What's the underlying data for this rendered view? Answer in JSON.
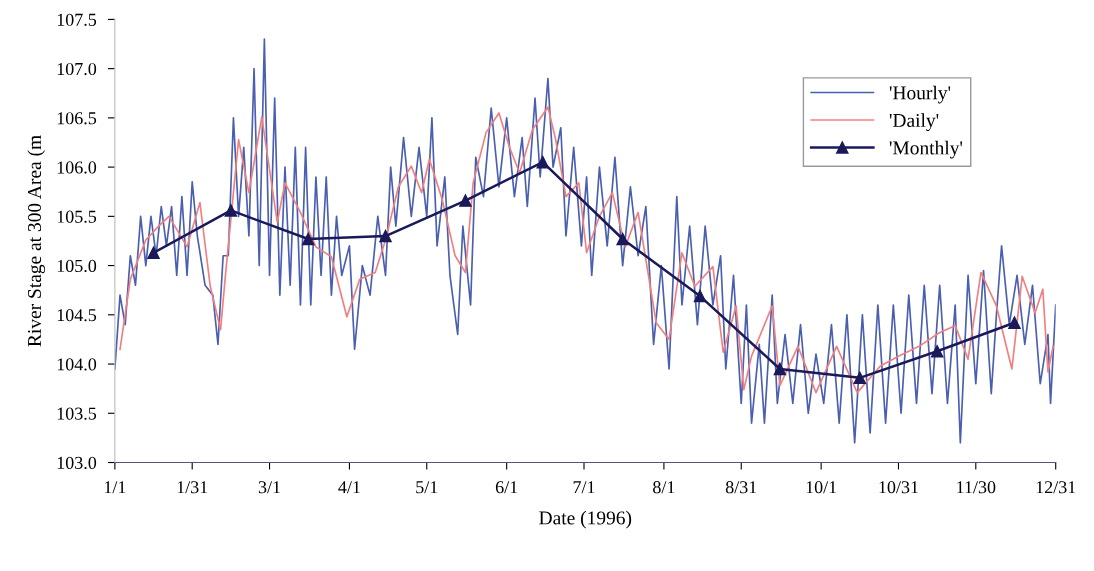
{
  "chart_data": {
    "type": "line",
    "xlabel": "Date (1996)",
    "ylabel": "River Stage at 300 Area (m",
    "legend": "top right",
    "grid": false,
    "xlim": [
      "1996-01-01",
      "1996-12-31"
    ],
    "xticks": [
      {
        "value": "1996-01-01",
        "label": "1/1"
      },
      {
        "value": "1996-01-31",
        "label": "1/31"
      },
      {
        "value": "1996-03-01",
        "label": "3/1"
      },
      {
        "value": "1996-04-01",
        "label": "4/1"
      },
      {
        "value": "1996-05-01",
        "label": "5/1"
      },
      {
        "value": "1996-06-01",
        "label": "6/1"
      },
      {
        "value": "1996-07-01",
        "label": "7/1"
      },
      {
        "value": "1996-08-01",
        "label": "8/1"
      },
      {
        "value": "1996-08-31",
        "label": "8/31"
      },
      {
        "value": "1996-10-01",
        "label": "10/1"
      },
      {
        "value": "1996-10-31",
        "label": "10/31"
      },
      {
        "value": "1996-11-30",
        "label": "11/30"
      },
      {
        "value": "1996-12-31",
        "label": "12/31"
      }
    ],
    "ylim": [
      103,
      107.5
    ],
    "yticks": [
      {
        "value": 103,
        "label": "103.0"
      },
      {
        "value": 103.5,
        "label": "103.5"
      },
      {
        "value": 104,
        "label": "104.0"
      },
      {
        "value": 104.5,
        "label": "104.5"
      },
      {
        "value": 105,
        "label": "105.0"
      },
      {
        "value": 105.5,
        "label": "105.5"
      },
      {
        "value": 106,
        "label": "106.0"
      },
      {
        "value": 106.5,
        "label": "106.5"
      },
      {
        "value": 107,
        "label": "107.0"
      },
      {
        "value": 107.5,
        "label": "107.5"
      }
    ],
    "series": [
      {
        "name": "'Hourly'",
        "color": "#4a5fb0",
        "marker": "none",
        "x": [
          "1996-01-01",
          "1996-01-03",
          "1996-01-05",
          "1996-01-07",
          "1996-01-09",
          "1996-01-11",
          "1996-01-13",
          "1996-01-15",
          "1996-01-17",
          "1996-01-19",
          "1996-01-21",
          "1996-01-23",
          "1996-01-25",
          "1996-01-27",
          "1996-01-29",
          "1996-01-31",
          "1996-02-02",
          "1996-02-05",
          "1996-02-08",
          "1996-02-10",
          "1996-02-12",
          "1996-02-14",
          "1996-02-16",
          "1996-02-18",
          "1996-02-20",
          "1996-02-22",
          "1996-02-24",
          "1996-02-26",
          "1996-02-28",
          "1996-03-01",
          "1996-03-03",
          "1996-03-05",
          "1996-03-07",
          "1996-03-09",
          "1996-03-11",
          "1996-03-13",
          "1996-03-15",
          "1996-03-17",
          "1996-03-19",
          "1996-03-21",
          "1996-03-23",
          "1996-03-25",
          "1996-03-27",
          "1996-03-29",
          "1996-04-01",
          "1996-04-03",
          "1996-04-06",
          "1996-04-09",
          "1996-04-12",
          "1996-04-15",
          "1996-04-17",
          "1996-04-19",
          "1996-04-22",
          "1996-04-25",
          "1996-04-28",
          "1996-05-01",
          "1996-05-03",
          "1996-05-05",
          "1996-05-08",
          "1996-05-10",
          "1996-05-13",
          "1996-05-15",
          "1996-05-18",
          "1996-05-20",
          "1996-05-23",
          "1996-05-26",
          "1996-05-29",
          "1996-06-01",
          "1996-06-04",
          "1996-06-07",
          "1996-06-09",
          "1996-06-12",
          "1996-06-14",
          "1996-06-17",
          "1996-06-19",
          "1996-06-22",
          "1996-06-24",
          "1996-06-27",
          "1996-06-30",
          "1996-07-02",
          "1996-07-04",
          "1996-07-07",
          "1996-07-10",
          "1996-07-13",
          "1996-07-16",
          "1996-07-19",
          "1996-07-22",
          "1996-07-25",
          "1996-07-28",
          "1996-07-31",
          "1996-08-03",
          "1996-08-06",
          "1996-08-08",
          "1996-08-11",
          "1996-08-14",
          "1996-08-17",
          "1996-08-20",
          "1996-08-23",
          "1996-08-25",
          "1996-08-28",
          "1996-08-31",
          "1996-09-02",
          "1996-09-04",
          "1996-09-07",
          "1996-09-09",
          "1996-09-12",
          "1996-09-14",
          "1996-09-17",
          "1996-09-20",
          "1996-09-23",
          "1996-09-26",
          "1996-09-29",
          "1996-10-02",
          "1996-10-05",
          "1996-10-08",
          "1996-10-11",
          "1996-10-14",
          "1996-10-17",
          "1996-10-20",
          "1996-10-23",
          "1996-10-26",
          "1996-10-29",
          "1996-11-01",
          "1996-11-04",
          "1996-11-07",
          "1996-11-10",
          "1996-11-13",
          "1996-11-16",
          "1996-11-19",
          "1996-11-22",
          "1996-11-24",
          "1996-11-27",
          "1996-11-30",
          "1996-12-03",
          "1996-12-06",
          "1996-12-08",
          "1996-12-10",
          "1996-12-13",
          "1996-12-16",
          "1996-12-19",
          "1996-12-22",
          "1996-12-25",
          "1996-12-28",
          "1996-12-29",
          "1996-12-31"
        ],
        "values": [
          103.95,
          104.7,
          104.4,
          105.1,
          104.8,
          105.5,
          105.0,
          105.5,
          105.1,
          105.6,
          105.2,
          105.6,
          104.9,
          105.7,
          104.9,
          105.85,
          105.3,
          104.8,
          104.7,
          104.2,
          105.1,
          105.1,
          106.5,
          105.5,
          106.2,
          105.3,
          107.0,
          105.0,
          107.3,
          104.9,
          106.7,
          104.7,
          106.0,
          104.8,
          106.2,
          104.6,
          106.2,
          104.6,
          105.9,
          104.9,
          105.9,
          104.7,
          105.5,
          104.9,
          105.2,
          104.15,
          105.0,
          104.7,
          105.5,
          104.9,
          106.0,
          105.4,
          106.3,
          105.5,
          106.2,
          105.5,
          106.5,
          105.2,
          105.9,
          104.9,
          104.3,
          105.4,
          104.6,
          106.1,
          105.7,
          106.6,
          105.8,
          106.5,
          105.7,
          106.3,
          105.6,
          106.7,
          105.9,
          106.9,
          106.0,
          106.4,
          105.3,
          106.2,
          105.2,
          105.9,
          104.9,
          106.0,
          105.2,
          106.1,
          105.0,
          105.8,
          105.1,
          105.6,
          104.2,
          105.0,
          103.95,
          105.7,
          104.6,
          105.4,
          104.4,
          105.4,
          104.6,
          105.1,
          103.95,
          104.9,
          103.6,
          104.6,
          103.4,
          104.2,
          103.4,
          104.7,
          103.6,
          104.3,
          103.6,
          104.4,
          103.5,
          104.1,
          103.6,
          104.4,
          103.4,
          104.5,
          103.2,
          104.5,
          103.3,
          104.6,
          103.4,
          104.6,
          103.5,
          104.7,
          103.6,
          104.8,
          103.7,
          104.8,
          103.6,
          104.6,
          103.2,
          104.9,
          103.8,
          104.95,
          103.7,
          104.5,
          105.2,
          104.4,
          104.9,
          104.2,
          104.8,
          103.8,
          104.3,
          103.6,
          104.6
        ]
      },
      {
        "name": "'Daily'",
        "color": "#f08080",
        "marker": "none",
        "x": [
          "1996-01-03",
          "1996-01-07",
          "1996-01-13",
          "1996-01-18",
          "1996-01-22",
          "1996-01-29",
          "1996-02-03",
          "1996-02-07",
          "1996-02-11",
          "1996-02-13",
          "1996-02-18",
          "1996-02-22",
          "1996-02-27",
          "1996-03-04",
          "1996-03-07",
          "1996-03-13",
          "1996-03-19",
          "1996-03-25",
          "1996-03-31",
          "1996-04-05",
          "1996-04-11",
          "1996-04-15",
          "1996-04-20",
          "1996-04-25",
          "1996-04-29",
          "1996-05-02",
          "1996-05-07",
          "1996-05-12",
          "1996-05-16",
          "1996-05-19",
          "1996-05-24",
          "1996-05-29",
          "1996-06-02",
          "1996-06-06",
          "1996-06-11",
          "1996-06-17",
          "1996-06-20",
          "1996-06-24",
          "1996-06-29",
          "1996-07-02",
          "1996-07-07",
          "1996-07-12",
          "1996-07-17",
          "1996-07-22",
          "1996-07-29",
          "1996-08-03",
          "1996-08-08",
          "1996-08-13",
          "1996-08-20",
          "1996-08-24",
          "1996-08-29",
          "1996-09-01",
          "1996-09-04",
          "1996-09-12",
          "1996-09-15",
          "1996-09-22",
          "1996-09-29",
          "1996-10-07",
          "1996-10-15",
          "1996-10-24",
          "1996-10-31",
          "1996-11-08",
          "1996-11-16",
          "1996-11-22",
          "1996-11-27",
          "1996-12-02",
          "1996-12-08",
          "1996-12-14",
          "1996-12-18",
          "1996-12-23",
          "1996-12-26",
          "1996-12-28",
          "1996-12-30"
        ],
        "values": [
          104.15,
          104.86,
          105.26,
          105.4,
          105.5,
          105.19,
          105.64,
          104.79,
          104.35,
          104.93,
          106.28,
          105.74,
          106.51,
          105.44,
          105.84,
          105.54,
          105.19,
          105.09,
          104.48,
          104.86,
          104.93,
          105.26,
          105.8,
          106.01,
          105.74,
          106.08,
          105.67,
          105.1,
          104.93,
          105.84,
          106.35,
          106.55,
          106.21,
          105.94,
          106.38,
          106.61,
          106.28,
          105.7,
          105.84,
          105.13,
          105.5,
          105.74,
          105.19,
          105.54,
          104.42,
          104.25,
          105.13,
          104.79,
          104.99,
          104.12,
          104.59,
          103.74,
          104.08,
          104.59,
          103.78,
          104.18,
          103.71,
          104.18,
          103.71,
          103.98,
          104.08,
          104.18,
          104.32,
          104.39,
          104.05,
          104.93,
          104.59,
          103.95,
          104.89,
          104.52,
          104.76,
          103.92,
          104.18
        ]
      },
      {
        "name": "'Monthly'",
        "color": "#1a1a5a",
        "marker": "triangle",
        "x": [
          "1996-01-16",
          "1996-02-15",
          "1996-03-16",
          "1996-04-15",
          "1996-05-16",
          "1996-06-15",
          "1996-07-16",
          "1996-08-15",
          "1996-09-15",
          "1996-10-16",
          "1996-11-15",
          "1996-12-15"
        ],
        "values": [
          105.13,
          105.56,
          105.27,
          105.3,
          105.66,
          106.05,
          105.27,
          104.69,
          103.95,
          103.86,
          104.13,
          104.42
        ]
      }
    ]
  }
}
